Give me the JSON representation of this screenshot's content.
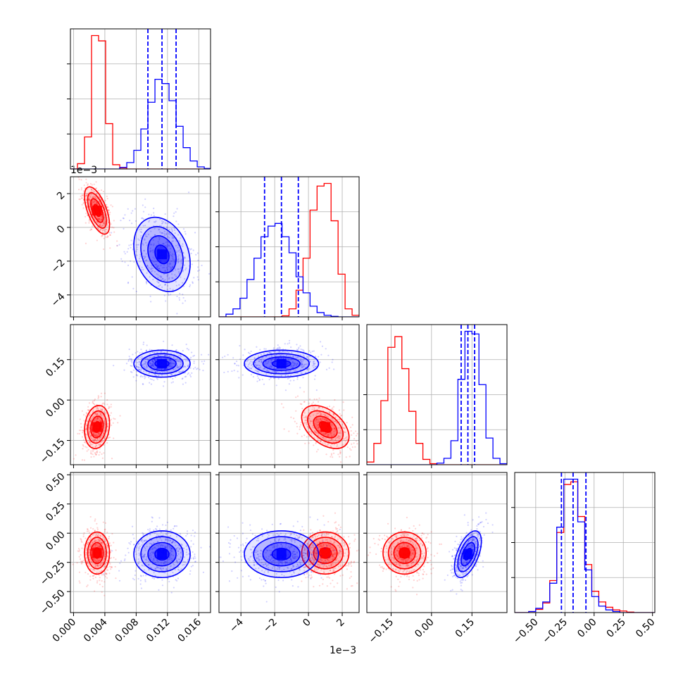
{
  "figure": {
    "offset_label_1": "1e−3",
    "offset_label_2": "1e−3"
  },
  "chart_data": {
    "type": "corner",
    "n_params": 4,
    "colors": {
      "model_a": "#ff0000",
      "model_b": "#0000ff"
    },
    "grid": true,
    "parameters": [
      {
        "index": 0,
        "range": [
          -0.0004,
          0.0175
        ],
        "ticks": [
          0.0,
          0.004,
          0.008,
          0.012,
          0.016
        ],
        "tick_labels": [
          "0.000",
          "0.004",
          "0.008",
          "0.012",
          "0.016"
        ]
      },
      {
        "index": 1,
        "range": [
          -5.3,
          3.0
        ],
        "ticks": [
          -4,
          -2,
          0,
          2
        ],
        "tick_labels": [
          "−4",
          "−2",
          "0",
          "2"
        ],
        "offset_text": "1e−3"
      },
      {
        "index": 2,
        "range": [
          -0.24,
          0.28
        ],
        "ticks": [
          -0.15,
          0.0,
          0.15
        ],
        "tick_labels": [
          "−0.15",
          "0.00",
          "0.15"
        ]
      },
      {
        "index": 3,
        "range": [
          -0.68,
          0.52
        ],
        "ticks": [
          -0.5,
          -0.25,
          0.0,
          0.25,
          0.5
        ],
        "tick_labels": [
          "−0.50",
          "−0.25",
          "0.00",
          "0.25",
          "0.50"
        ]
      }
    ],
    "series": [
      {
        "color": "#ff0000",
        "means": [
          0.003,
          1.0,
          -0.1,
          -0.17
        ],
        "stds": [
          0.0008,
          0.7,
          0.04,
          0.09
        ],
        "correlations": {
          "0-1": -0.6,
          "0-2": 0.15,
          "0-3": 0.0,
          "1-2": -0.45,
          "1-3": 0.0,
          "2-3": 0.0
        },
        "quantile_lines": [],
        "histograms": [
          {
            "param": 0,
            "edges": [
              -0.0004,
              0.0005,
              0.0014,
              0.0023,
              0.0032,
              0.0041,
              0.005,
              0.0059,
              0.0068,
              0.0077,
              0.0086,
              0.0095,
              0.0104,
              0.0113,
              0.0122,
              0.0131,
              0.014,
              0.0149,
              0.0158,
              0.0167,
              0.0175
            ],
            "counts": [
              0,
              10,
              60,
              250,
              240,
              85,
              8,
              2,
              0,
              0,
              0,
              0,
              0,
              0,
              0,
              0,
              0,
              0,
              0,
              0
            ]
          },
          {
            "param": 1,
            "edges": [
              -5.3,
              -4.885,
              -4.47,
              -4.055,
              -3.64,
              -3.225,
              -2.81,
              -2.395,
              -1.98,
              -1.565,
              -1.15,
              -0.735,
              -0.32,
              0.095,
              0.51,
              0.925,
              1.34,
              1.755,
              2.17,
              2.585,
              3.0
            ],
            "counts": [
              0,
              0,
              0,
              0,
              0,
              0,
              0,
              0,
              0,
              2,
              15,
              50,
              110,
              200,
              245,
              250,
              180,
              80,
              15,
              3
            ]
          },
          {
            "param": 2,
            "edges": [
              -0.24,
              -0.214,
              -0.188,
              -0.162,
              -0.136,
              -0.11,
              -0.084,
              -0.058,
              -0.032,
              -0.006,
              0.02,
              0.046,
              0.072,
              0.098,
              0.124,
              0.15,
              0.176,
              0.202,
              0.228,
              0.254,
              0.28
            ],
            "counts": [
              5,
              40,
              120,
              220,
              240,
              180,
              100,
              40,
              10,
              2,
              0,
              0,
              0,
              0,
              0,
              0,
              0,
              0,
              0,
              0
            ]
          },
          {
            "param": 3,
            "edges": [
              -0.68,
              -0.62,
              -0.56,
              -0.5,
              -0.44,
              -0.38,
              -0.32,
              -0.26,
              -0.2,
              -0.14,
              -0.08,
              -0.02,
              0.04,
              0.1,
              0.16,
              0.22,
              0.28,
              0.34,
              0.4,
              0.46,
              0.52
            ],
            "counts": [
              0,
              0,
              2,
              6,
              18,
              60,
              150,
              240,
              245,
              180,
              90,
              40,
              20,
              10,
              5,
              3,
              1,
              0,
              0,
              0
            ]
          }
        ]
      },
      {
        "color": "#0000ff",
        "means": [
          0.0113,
          -1.6,
          0.135,
          -0.18
        ],
        "stds": [
          0.0018,
          1.1,
          0.025,
          0.1
        ],
        "correlations": {
          "0-1": -0.25,
          "0-2": 0.0,
          "0-3": 0.0,
          "1-2": 0.0,
          "1-3": 0.0,
          "2-3": 0.55
        },
        "quantile_lines": [
          {
            "param": 0,
            "values": [
              0.0095,
              0.0113,
              0.0131
            ]
          },
          {
            "param": 1,
            "values": [
              -2.6,
              -1.6,
              -0.6
            ]
          },
          {
            "param": 2,
            "values": [
              0.11,
              0.135,
              0.16
            ]
          },
          {
            "param": 3,
            "values": [
              -0.28,
              -0.18,
              -0.07
            ]
          }
        ],
        "histograms": [
          {
            "param": 0,
            "edges": [
              -0.0004,
              0.0005,
              0.0014,
              0.0023,
              0.0032,
              0.0041,
              0.005,
              0.0059,
              0.0068,
              0.0077,
              0.0086,
              0.0095,
              0.0104,
              0.0113,
              0.0122,
              0.0131,
              0.014,
              0.0149,
              0.0158,
              0.0167,
              0.0175
            ],
            "counts": [
              0,
              0,
              0,
              0,
              0,
              0,
              0,
              3,
              12,
              35,
              75,
              125,
              168,
              160,
              128,
              80,
              40,
              15,
              4,
              1
            ]
          },
          {
            "param": 1,
            "edges": [
              -5.3,
              -4.885,
              -4.47,
              -4.055,
              -3.64,
              -3.225,
              -2.81,
              -2.395,
              -1.98,
              -1.565,
              -1.15,
              -0.735,
              -0.32,
              0.095,
              0.51,
              0.925,
              1.34,
              1.755,
              2.17,
              2.585,
              3.0
            ],
            "counts": [
              0,
              5,
              15,
              35,
              70,
              110,
              150,
              170,
              175,
              150,
              120,
              75,
              45,
              20,
              8,
              3,
              1,
              0,
              0,
              0
            ]
          },
          {
            "param": 2,
            "edges": [
              -0.24,
              -0.214,
              -0.188,
              -0.162,
              -0.136,
              -0.11,
              -0.084,
              -0.058,
              -0.032,
              -0.006,
              0.02,
              0.046,
              0.072,
              0.098,
              0.124,
              0.15,
              0.176,
              0.202,
              0.228,
              0.254,
              0.28
            ],
            "counts": [
              0,
              0,
              0,
              0,
              0,
              0,
              0,
              0,
              0,
              0,
              3,
              12,
              45,
              160,
              250,
              245,
              150,
              50,
              12,
              2
            ]
          },
          {
            "param": 3,
            "edges": [
              -0.68,
              -0.62,
              -0.56,
              -0.5,
              -0.44,
              -0.38,
              -0.32,
              -0.26,
              -0.2,
              -0.14,
              -0.08,
              -0.02,
              0.04,
              0.1,
              0.16,
              0.22,
              0.28,
              0.34,
              0.4,
              0.46,
              0.52
            ],
            "counts": [
              0,
              0,
              2,
              8,
              20,
              55,
              160,
              250,
              250,
              170,
              80,
              30,
              12,
              5,
              2,
              0,
              0,
              0,
              0,
              0
            ]
          }
        ]
      }
    ]
  }
}
